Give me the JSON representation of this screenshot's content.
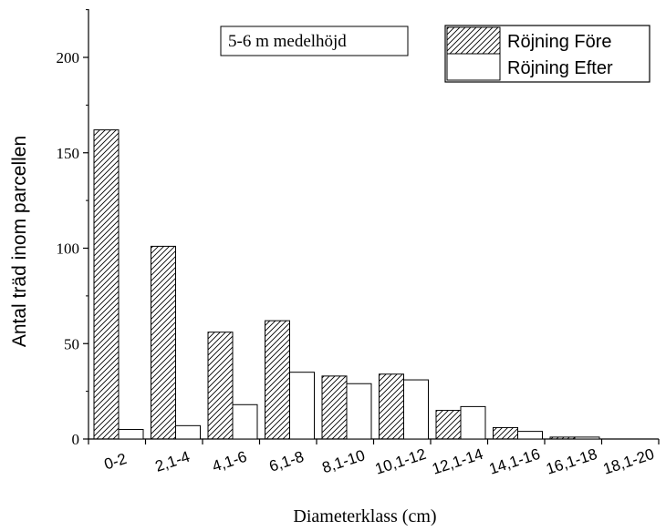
{
  "chart_data": {
    "type": "bar",
    "title": "",
    "annotation": "5-6 m medelhöjd",
    "xlabel": "Diameterklass (cm)",
    "ylabel": "Antal träd inom parcellen",
    "categories": [
      "0-2",
      "2,1-4",
      "4,1-6",
      "6,1-8",
      "8,1-10",
      "10,1-12",
      "12,1-14",
      "14,1-16",
      "16,1-18",
      "18,1-20"
    ],
    "series": [
      {
        "name": "Röjning Före",
        "pattern": "diagonal-hatch",
        "values": [
          162,
          101,
          56,
          62,
          33,
          34,
          15,
          6,
          1,
          0
        ]
      },
      {
        "name": "Röjning Efter",
        "pattern": "none",
        "values": [
          5,
          7,
          18,
          35,
          29,
          31,
          17,
          4,
          1,
          0
        ]
      }
    ],
    "ylim": [
      0,
      225
    ],
    "yticks": [
      0,
      50,
      100,
      150,
      200
    ],
    "legend_position": "top-right",
    "grid": false,
    "colors": {
      "stroke": "#000000",
      "fill": "#ffffff"
    }
  }
}
